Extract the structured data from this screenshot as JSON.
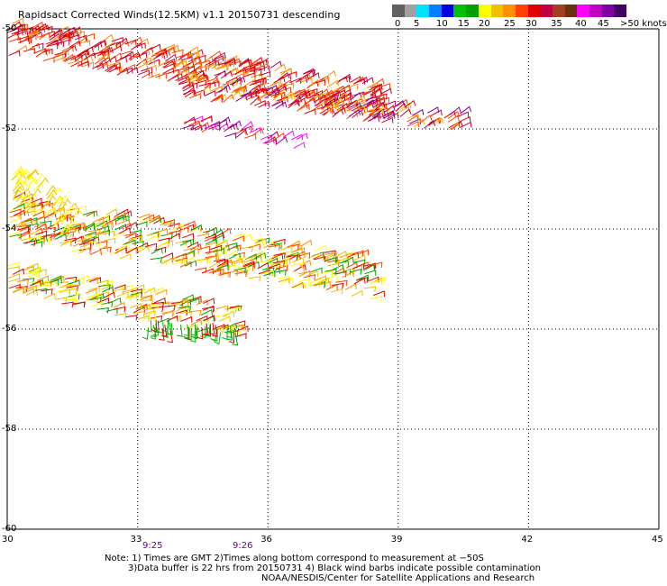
{
  "title": "Rapidsact Corrected Winds(12.5KM) v1.1 20150731 descending",
  "legend": {
    "colors": [
      "#606060",
      "#a0a0a0",
      "#00e0ff",
      "#0080ff",
      "#0000e0",
      "#00c000",
      "#00a000",
      "#ffff00",
      "#f0c000",
      "#ff9000",
      "#ff4000",
      "#e00000",
      "#c00040",
      "#a04020",
      "#6a3010",
      "#ff00ff",
      "#c000c0",
      "#8000a0",
      "#400060"
    ],
    "labels": [
      "0",
      "5",
      "10",
      "15",
      "20",
      "25",
      "30",
      "35",
      "40",
      "45",
      ">50 knots"
    ]
  },
  "axes": {
    "x_ticks": [
      "30",
      "33",
      "36",
      "39",
      "42",
      "45"
    ],
    "y_ticks": [
      "-50",
      "-52",
      "-54",
      "-56",
      "-58",
      "-60"
    ],
    "grid": "dotted"
  },
  "times": [
    "9:25",
    "9:26"
  ],
  "notes": [
    "Note: 1) Times are GMT 2)Times along bottom correspond to measurement at −50S",
    "3)Data buffer is 22 hrs from 20150731 4) Black wind barbs indicate possible contamination",
    "NOAA/NESDIS/Center for Satellite Applications and Research"
  ],
  "swaths": [
    {
      "name": "north-swath",
      "lon": [
        30.0,
        38.5
      ],
      "lat": [
        -50.3,
        -51.5
      ],
      "colors": [
        "#e00000",
        "#c00040",
        "#ff4000",
        "#ff9000"
      ]
    },
    {
      "name": "north-swath-tail",
      "lon": [
        33.5,
        40.5
      ],
      "lat": [
        -51.3,
        -52.1
      ],
      "colors": [
        "#e00000",
        "#c00040",
        "#ff4000",
        "#8000a0",
        "#f0c000"
      ]
    },
    {
      "name": "mid-swath",
      "lon": [
        30.0,
        38.5
      ],
      "lat": [
        -53.8,
        -55.6
      ],
      "colors": [
        "#00a000",
        "#f0c000",
        "#ff9000",
        "#ff4000",
        "#e00000",
        "#ffff00"
      ]
    },
    {
      "name": "south-swath",
      "lon": [
        30.0,
        35.3
      ],
      "lat": [
        -52.7,
        -56.1
      ],
      "colors": [
        "#ffff00",
        "#f0c000",
        "#ff9000",
        "#00a000",
        "#e00000"
      ]
    }
  ]
}
